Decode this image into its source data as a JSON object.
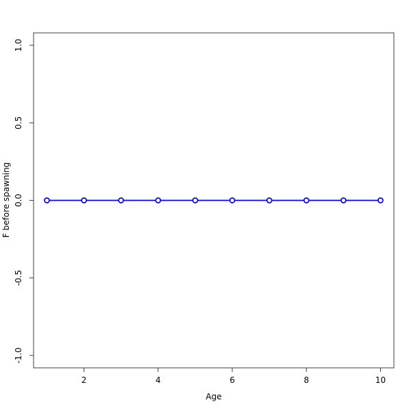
{
  "chart_data": {
    "type": "line",
    "title": "",
    "xlabel": "Age",
    "ylabel": "F before spawning",
    "x": [
      1,
      2,
      3,
      4,
      5,
      6,
      7,
      8,
      9,
      10
    ],
    "series": [
      {
        "name": "F before spawning",
        "values": [
          0,
          0,
          0,
          0,
          0,
          0,
          0,
          0,
          0,
          0
        ]
      }
    ],
    "xlim": [
      0.64,
      10.36
    ],
    "ylim": [
      -1.08,
      1.08
    ],
    "xticks": [
      2,
      4,
      6,
      8,
      10
    ],
    "xtick_labels": [
      "2",
      "4",
      "6",
      "8",
      "10"
    ],
    "yticks": [
      -1.0,
      -0.5,
      0.0,
      0.5,
      1.0
    ],
    "ytick_labels": [
      "-1.0",
      "-0.5",
      "0.0",
      "0.5",
      "1.0"
    ],
    "grid": false,
    "legend": "none",
    "marker": "open-circle",
    "line_color": "#0000FF",
    "marker_fill": "#FFFFFF",
    "axis_color": "#3c3c3c",
    "text_color": "#000000",
    "background": "#FFFFFF"
  }
}
